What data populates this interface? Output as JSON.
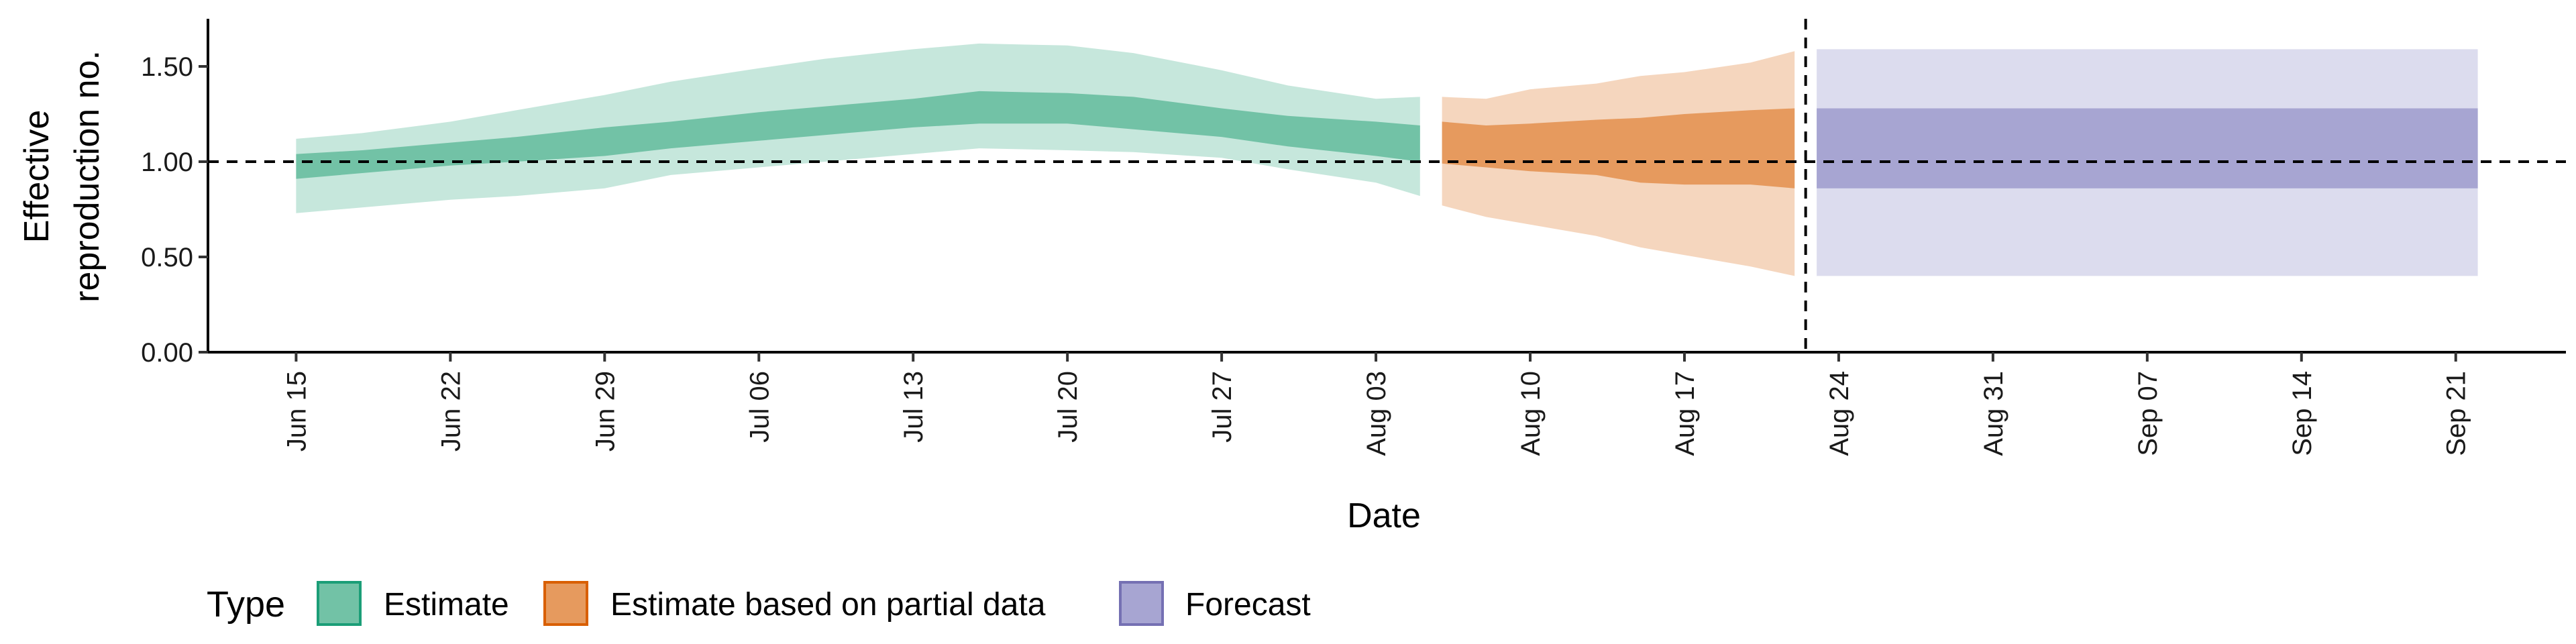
{
  "chart_data": {
    "type": "area",
    "xlabel": "Date",
    "ylabel": [
      "Effective",
      "reproduction no."
    ],
    "ylim": [
      0,
      1.75
    ],
    "yticks": [
      0,
      0.5,
      1.0,
      1.5
    ],
    "ytick_labels": [
      "0.00",
      "0.50",
      "1.00",
      "1.50"
    ],
    "xlim": [
      "2020-06-11",
      "2020-09-26"
    ],
    "xticks": [
      "2020-06-15",
      "2020-06-22",
      "2020-06-29",
      "2020-07-06",
      "2020-07-13",
      "2020-07-20",
      "2020-07-27",
      "2020-08-03",
      "2020-08-10",
      "2020-08-17",
      "2020-08-24",
      "2020-08-31",
      "2020-09-07",
      "2020-09-14",
      "2020-09-21"
    ],
    "xtick_labels": [
      "Jun 15",
      "Jun 22",
      "Jun 29",
      "Jul 06",
      "Jul 13",
      "Jul 20",
      "Jul 27",
      "Aug 03",
      "Aug 10",
      "Aug 17",
      "Aug 24",
      "Aug 31",
      "Sep 07",
      "Sep 14",
      "Sep 21"
    ],
    "reference_line": {
      "y": 1.0,
      "style": "dashed"
    },
    "vertical_line": {
      "x": "2020-08-22",
      "style": "dashed"
    },
    "grid": false,
    "legend": {
      "title": "Type",
      "position": "bottom-left",
      "entries": [
        "Estimate",
        "Estimate based on partial data",
        "Forecast"
      ]
    },
    "colors": {
      "Estimate": {
        "inner": "#72c2a6",
        "outer": "#c6e7dc",
        "border": "#1b9e77"
      },
      "Estimate based on partial data": {
        "inner": "#e69a5e",
        "outer": "#f5d6be",
        "border": "#d95f02"
      },
      "Forecast": {
        "inner": "#a7a5d2",
        "outer": "#dcdcee",
        "border": "#7570b3"
      }
    },
    "series": [
      {
        "name": "Estimate",
        "x": [
          "2020-06-15",
          "2020-06-18",
          "2020-06-22",
          "2020-06-25",
          "2020-06-29",
          "2020-07-02",
          "2020-07-06",
          "2020-07-09",
          "2020-07-13",
          "2020-07-16",
          "2020-07-20",
          "2020-07-23",
          "2020-07-27",
          "2020-07-30",
          "2020-08-03",
          "2020-08-05"
        ],
        "lower_90": [
          0.73,
          0.76,
          0.8,
          0.82,
          0.86,
          0.93,
          0.97,
          1.0,
          1.04,
          1.07,
          1.06,
          1.05,
          1.02,
          0.96,
          0.89,
          0.82
        ],
        "lower_50": [
          0.91,
          0.94,
          0.98,
          1.0,
          1.03,
          1.07,
          1.11,
          1.14,
          1.18,
          1.2,
          1.2,
          1.17,
          1.13,
          1.08,
          1.03,
          1.0
        ],
        "upper_50": [
          1.04,
          1.06,
          1.1,
          1.13,
          1.18,
          1.21,
          1.26,
          1.29,
          1.33,
          1.37,
          1.36,
          1.34,
          1.28,
          1.24,
          1.21,
          1.19
        ],
        "upper_90": [
          1.12,
          1.15,
          1.21,
          1.27,
          1.35,
          1.42,
          1.49,
          1.54,
          1.59,
          1.62,
          1.61,
          1.57,
          1.48,
          1.4,
          1.33,
          1.34
        ]
      },
      {
        "name": "Estimate based on partial data",
        "x": [
          "2020-08-06",
          "2020-08-08",
          "2020-08-10",
          "2020-08-13",
          "2020-08-15",
          "2020-08-17",
          "2020-08-20",
          "2020-08-22"
        ],
        "lower_90": [
          0.77,
          0.71,
          0.67,
          0.61,
          0.55,
          0.51,
          0.45,
          0.4
        ],
        "lower_50": [
          0.99,
          0.97,
          0.95,
          0.93,
          0.89,
          0.88,
          0.88,
          0.86
        ],
        "upper_50": [
          1.21,
          1.19,
          1.2,
          1.22,
          1.23,
          1.25,
          1.27,
          1.28
        ],
        "upper_90": [
          1.34,
          1.33,
          1.38,
          1.41,
          1.45,
          1.47,
          1.52,
          1.58
        ]
      },
      {
        "name": "Forecast",
        "x": [
          "2020-08-23",
          "2020-09-22"
        ],
        "lower_90": [
          0.4,
          0.4
        ],
        "lower_50": [
          0.86,
          0.86
        ],
        "upper_50": [
          1.28,
          1.28
        ],
        "upper_90": [
          1.59,
          1.59
        ]
      }
    ]
  }
}
